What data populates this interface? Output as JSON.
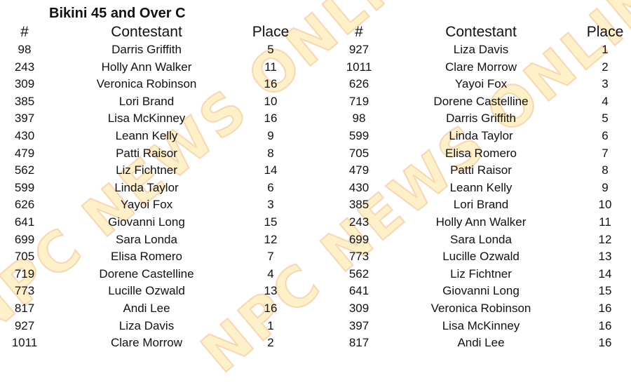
{
  "title": "Bikini 45 and Over C",
  "watermark": "NPC NEWS ONLINE",
  "headers": {
    "num": "#",
    "contestant": "Contestant",
    "place": "Place"
  },
  "by_number": [
    [
      "98",
      "Darris Griffith",
      "5"
    ],
    [
      "243",
      "Holly Ann Walker",
      "11"
    ],
    [
      "309",
      "Veronica Robinson",
      "16"
    ],
    [
      "385",
      "Lori Brand",
      "10"
    ],
    [
      "397",
      "Lisa McKinney",
      "16"
    ],
    [
      "430",
      "Leann Kelly",
      "9"
    ],
    [
      "479",
      "Patti Raisor",
      "8"
    ],
    [
      "562",
      "Liz Fichtner",
      "14"
    ],
    [
      "599",
      "Linda Taylor",
      "6"
    ],
    [
      "626",
      "Yayoi Fox",
      "3"
    ],
    [
      "641",
      "Giovanni Long",
      "15"
    ],
    [
      "699",
      "Sara Londa",
      "12"
    ],
    [
      "705",
      "Elisa Romero",
      "7"
    ],
    [
      "719",
      "Dorene Castelline",
      "4"
    ],
    [
      "773",
      "Lucille Ozwald",
      "13"
    ],
    [
      "817",
      "Andi Lee",
      "16"
    ],
    [
      "927",
      "Liza Davis",
      "1"
    ],
    [
      "1011",
      "Clare Morrow",
      "2"
    ]
  ],
  "by_place": [
    [
      "927",
      "Liza Davis",
      "1"
    ],
    [
      "1011",
      "Clare Morrow",
      "2"
    ],
    [
      "626",
      "Yayoi Fox",
      "3"
    ],
    [
      "719",
      "Dorene Castelline",
      "4"
    ],
    [
      "98",
      "Darris Griffith",
      "5"
    ],
    [
      "599",
      "Linda Taylor",
      "6"
    ],
    [
      "705",
      "Elisa Romero",
      "7"
    ],
    [
      "479",
      "Patti Raisor",
      "8"
    ],
    [
      "430",
      "Leann Kelly",
      "9"
    ],
    [
      "385",
      "Lori Brand",
      "10"
    ],
    [
      "243",
      "Holly Ann Walker",
      "11"
    ],
    [
      "699",
      "Sara Londa",
      "12"
    ],
    [
      "773",
      "Lucille Ozwald",
      "13"
    ],
    [
      "562",
      "Liz Fichtner",
      "14"
    ],
    [
      "641",
      "Giovanni Long",
      "15"
    ],
    [
      "309",
      "Veronica Robinson",
      "16"
    ],
    [
      "397",
      "Lisa McKinney",
      "16"
    ],
    [
      "817",
      "Andi Lee",
      "16"
    ]
  ]
}
